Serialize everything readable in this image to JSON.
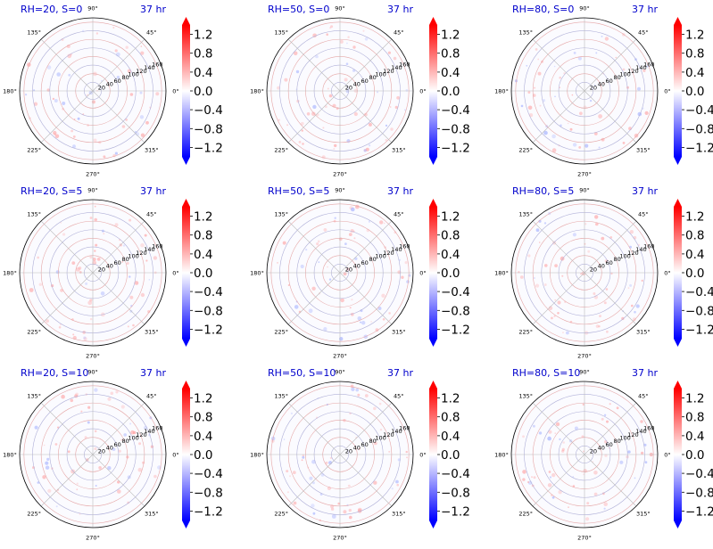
{
  "figure": {
    "title_color": "#0000cc",
    "colormap": [
      "#0000ff",
      "#ffffff",
      "#ff0000"
    ],
    "color_range": [
      -1.4,
      1.4
    ],
    "colorbar_ticks": [
      "1.2",
      "0.8",
      "0.4",
      "0.0",
      "−0.4",
      "−0.8",
      "−1.2"
    ],
    "colorbar_tick_values": [
      1.2,
      0.8,
      0.4,
      0.0,
      -0.4,
      -0.8,
      -1.2
    ],
    "angle_labels": [
      "0°",
      "45°",
      "90°",
      "135°",
      "180°",
      "225°",
      "270°",
      "315°"
    ],
    "angle_values": [
      0,
      45,
      90,
      135,
      180,
      225,
      270,
      315
    ],
    "radial_labels": [
      "20",
      "40",
      "60",
      "80",
      "100",
      "120",
      "140",
      "160"
    ],
    "radial_values": [
      20,
      40,
      60,
      80,
      100,
      120,
      140,
      160
    ],
    "radial_max": 170,
    "radial_label_angle": 22.5
  },
  "chart_data": [
    {
      "type": "heatmap",
      "projection": "polar",
      "title": "RH=20, S=0",
      "time_label": "37 hr",
      "rlim": [
        0,
        170
      ],
      "grid": true,
      "colorbar": "right"
    },
    {
      "type": "heatmap",
      "projection": "polar",
      "title": "RH=50, S=0",
      "time_label": "37 hr",
      "rlim": [
        0,
        170
      ],
      "grid": true,
      "colorbar": "right"
    },
    {
      "type": "heatmap",
      "projection": "polar",
      "title": "RH=80, S=0",
      "time_label": "37 hr",
      "rlim": [
        0,
        170
      ],
      "grid": true,
      "colorbar": "right"
    },
    {
      "type": "heatmap",
      "projection": "polar",
      "title": "RH=20, S=5",
      "time_label": "37 hr",
      "rlim": [
        0,
        170
      ],
      "grid": true,
      "colorbar": "right"
    },
    {
      "type": "heatmap",
      "projection": "polar",
      "title": "RH=50, S=5",
      "time_label": "37 hr",
      "rlim": [
        0,
        170
      ],
      "grid": true,
      "colorbar": "right"
    },
    {
      "type": "heatmap",
      "projection": "polar",
      "title": "RH=80, S=5",
      "time_label": "37 hr",
      "rlim": [
        0,
        170
      ],
      "grid": true,
      "colorbar": "right"
    },
    {
      "type": "heatmap",
      "projection": "polar",
      "title": "RH=20, S=10",
      "time_label": "37 hr",
      "rlim": [
        0,
        170
      ],
      "grid": true,
      "colorbar": "right"
    },
    {
      "type": "heatmap",
      "projection": "polar",
      "title": "RH=50, S=10",
      "time_label": "37 hr",
      "rlim": [
        0,
        170
      ],
      "grid": true,
      "colorbar": "right"
    },
    {
      "type": "heatmap",
      "projection": "polar",
      "title": "RH=80, S=10",
      "time_label": "37 hr",
      "rlim": [
        0,
        170
      ],
      "grid": true,
      "colorbar": "right"
    }
  ]
}
